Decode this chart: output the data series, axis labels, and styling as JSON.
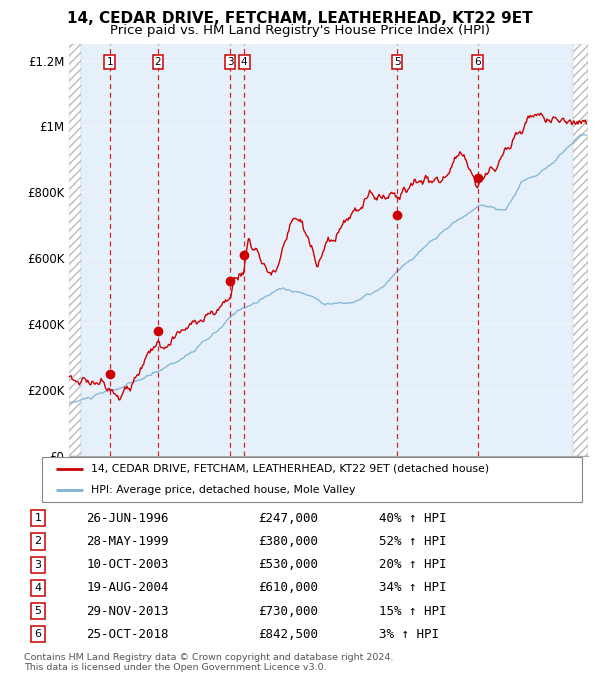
{
  "title": "14, CEDAR DRIVE, FETCHAM, LEATHERHEAD, KT22 9ET",
  "subtitle": "Price paid vs. HM Land Registry's House Price Index (HPI)",
  "legend_line1": "14, CEDAR DRIVE, FETCHAM, LEATHERHEAD, KT22 9ET (detached house)",
  "legend_line2": "HPI: Average price, detached house, Mole Valley",
  "footer1": "Contains HM Land Registry data © Crown copyright and database right 2024.",
  "footer2": "This data is licensed under the Open Government Licence v3.0.",
  "xmin": 1994.0,
  "xmax": 2025.5,
  "ymin": 0,
  "ymax": 1250000,
  "yticks": [
    0,
    200000,
    400000,
    600000,
    800000,
    1000000,
    1200000
  ],
  "ytick_labels": [
    "£0",
    "£200K",
    "£400K",
    "£600K",
    "£800K",
    "£1M",
    "£1.2M"
  ],
  "transactions": [
    {
      "num": 1,
      "date_x": 1996.48,
      "price": 247000,
      "label": "26-JUN-1996",
      "price_str": "£247,000",
      "hpi_str": "40% ↑ HPI"
    },
    {
      "num": 2,
      "date_x": 1999.4,
      "price": 380000,
      "label": "28-MAY-1999",
      "price_str": "£380,000",
      "hpi_str": "52% ↑ HPI"
    },
    {
      "num": 3,
      "date_x": 2003.77,
      "price": 530000,
      "label": "10-OCT-2003",
      "price_str": "£530,000",
      "hpi_str": "20% ↑ HPI"
    },
    {
      "num": 4,
      "date_x": 2004.63,
      "price": 610000,
      "label": "19-AUG-2004",
      "price_str": "£610,000",
      "hpi_str": "34% ↑ HPI"
    },
    {
      "num": 5,
      "date_x": 2013.91,
      "price": 730000,
      "label": "29-NOV-2013",
      "price_str": "£730,000",
      "hpi_str": "15% ↑ HPI"
    },
    {
      "num": 6,
      "date_x": 2018.81,
      "price": 842500,
      "label": "25-OCT-2018",
      "price_str": "£842,500",
      "hpi_str": "3% ↑ HPI"
    }
  ],
  "hatch_left_end": 1994.75,
  "hatch_right_start": 2024.6,
  "shade_color": "#ddeeff",
  "red_line_color": "#cc0000",
  "blue_line_color": "#7fb3d3",
  "marker_color": "#cc0000",
  "vline_color": "#cc0000",
  "box_edge_color": "#cc0000",
  "title_fontsize": 11,
  "subtitle_fontsize": 9.5,
  "axis_fontsize": 8,
  "table_fontsize": 9,
  "chart_bg_color": "#f0f4f8"
}
